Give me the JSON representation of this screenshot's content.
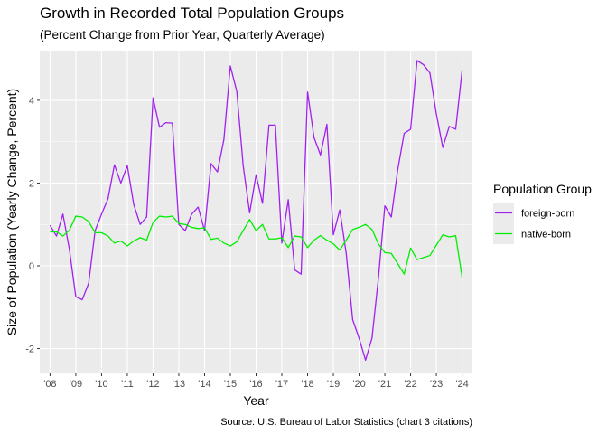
{
  "chart_data": {
    "type": "line",
    "title": "Growth in Recorded Total Population Groups",
    "subtitle": "(Percent Change from Prior Year, Quarterly Average)",
    "xlabel": "Year",
    "ylabel": "Size of Population (Yearly Change, Percent)",
    "caption": "Source: U.S. Bureau of Labor Statistics (chart 3 citations)",
    "x_ticks": [
      "'08",
      "'09",
      "'10",
      "'11",
      "'12",
      "'13",
      "'14",
      "'15",
      "'16",
      "'17",
      "'18",
      "'19",
      "'20",
      "'21",
      "'22",
      "'23",
      "'24"
    ],
    "y_ticks": [
      -2,
      0,
      2,
      4
    ],
    "xlim": [
      2007.6,
      2024.4
    ],
    "ylim": [
      -2.6,
      5.2
    ],
    "grid": true,
    "legend": {
      "title": "Population Group",
      "position": "right"
    },
    "x": [
      2008.0,
      2008.25,
      2008.5,
      2008.75,
      2009.0,
      2009.25,
      2009.5,
      2009.75,
      2010.0,
      2010.25,
      2010.5,
      2010.75,
      2011.0,
      2011.25,
      2011.5,
      2011.75,
      2012.0,
      2012.25,
      2012.5,
      2012.75,
      2013.0,
      2013.25,
      2013.5,
      2013.75,
      2014.0,
      2014.25,
      2014.5,
      2014.75,
      2015.0,
      2015.25,
      2015.5,
      2015.75,
      2016.0,
      2016.25,
      2016.5,
      2016.75,
      2017.0,
      2017.25,
      2017.5,
      2017.75,
      2018.0,
      2018.25,
      2018.5,
      2018.75,
      2019.0,
      2019.25,
      2019.5,
      2019.75,
      2020.0,
      2020.25,
      2020.5,
      2020.75,
      2021.0,
      2021.25,
      2021.5,
      2021.75,
      2022.0,
      2022.25,
      2022.5,
      2022.75,
      2023.0,
      2023.25,
      2023.5,
      2023.75,
      2024.0
    ],
    "series": [
      {
        "name": "foreign-born",
        "color": "#a020f0",
        "values": [
          0.98,
          0.72,
          1.25,
          0.4,
          -0.75,
          -0.82,
          -0.42,
          0.85,
          1.25,
          1.62,
          2.44,
          2.0,
          2.42,
          1.48,
          1.0,
          1.18,
          4.06,
          3.35,
          3.46,
          3.45,
          1.0,
          0.85,
          1.25,
          1.42,
          0.85,
          2.47,
          2.27,
          3.05,
          4.83,
          4.22,
          2.42,
          1.28,
          2.2,
          1.51,
          3.4,
          3.4,
          0.55,
          1.6,
          -0.1,
          -0.2,
          4.2,
          3.1,
          2.68,
          3.42,
          0.75,
          1.35,
          0.3,
          -1.3,
          -1.75,
          -2.28,
          -1.75,
          -0.3,
          1.45,
          1.18,
          2.32,
          3.2,
          3.3,
          4.96,
          4.86,
          4.66,
          3.67,
          2.86,
          3.37,
          3.3,
          4.73
        ]
      },
      {
        "name": "native-born",
        "color": "#00ee00",
        "values": [
          0.82,
          0.82,
          0.72,
          0.86,
          1.2,
          1.18,
          1.07,
          0.8,
          0.8,
          0.72,
          0.55,
          0.6,
          0.48,
          0.6,
          0.68,
          0.62,
          1.05,
          1.2,
          1.18,
          1.2,
          1.02,
          1.0,
          0.93,
          0.9,
          0.92,
          0.64,
          0.67,
          0.55,
          0.48,
          0.58,
          0.85,
          1.12,
          0.85,
          1.0,
          0.65,
          0.65,
          0.68,
          0.44,
          0.72,
          0.7,
          0.44,
          0.62,
          0.73,
          0.62,
          0.53,
          0.38,
          0.62,
          0.88,
          0.93,
          1.0,
          0.88,
          0.53,
          0.32,
          0.3,
          0.05,
          -0.2,
          0.43,
          0.15,
          0.2,
          0.25,
          0.5,
          0.75,
          0.7,
          0.73,
          -0.28
        ]
      }
    ]
  }
}
